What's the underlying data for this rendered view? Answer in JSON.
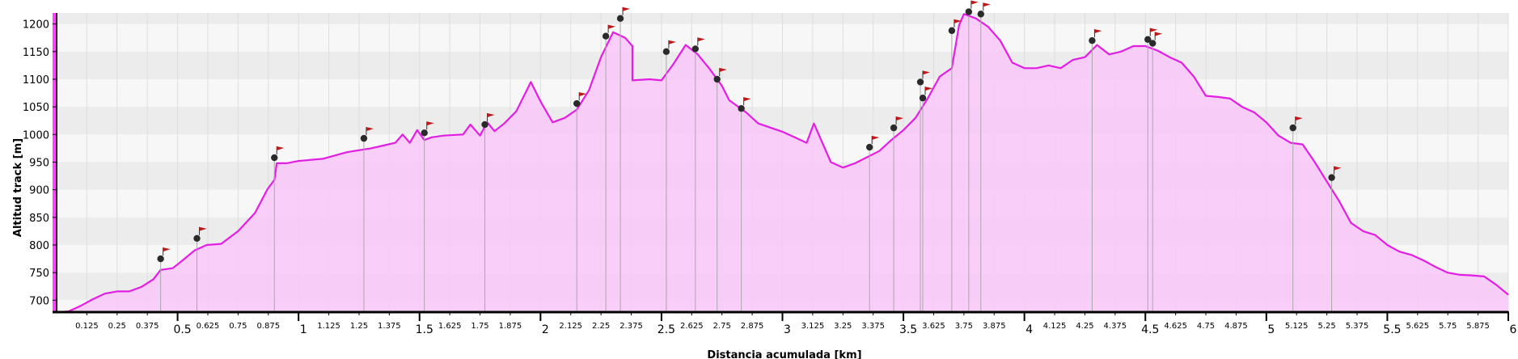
{
  "chart_data": {
    "type": "area",
    "xlabel": "Distancia acumulada [km]",
    "ylabel": "Altitud track [m]",
    "xlim": [
      0,
      6
    ],
    "ylim": [
      680,
      1220
    ],
    "x_major_ticks": [
      "0.5",
      "1",
      "1.5",
      "2",
      "2.5",
      "3",
      "3.5",
      "4",
      "4.5",
      "5",
      "5.5",
      "6"
    ],
    "x_minor_ticks": [
      "0.125",
      "0.25",
      "0.375",
      "0.625",
      "0.75",
      "0.875",
      "1.125",
      "1.25",
      "1.375",
      "1.625",
      "1.75",
      "1.875",
      "2.125",
      "2.25",
      "2.375",
      "2.625",
      "2.75",
      "2.875",
      "3.125",
      "3.25",
      "3.375",
      "3.625",
      "3.75",
      "3.875",
      "4.125",
      "4.25",
      "4.375",
      "4.625",
      "4.75",
      "4.875",
      "5.125",
      "5.25",
      "5.375",
      "5.625",
      "5.75",
      "5.875"
    ],
    "y_ticks": [
      "700",
      "750",
      "800",
      "850",
      "900",
      "950",
      "1000",
      "1050",
      "1100",
      "1150",
      "1200"
    ],
    "grid": true,
    "colors": {
      "line": "#e21ee2",
      "fill": "#f9c8f9",
      "band_dark": "#ececec",
      "band_light": "#f7f7f7",
      "axis_accent": "#ff44ff",
      "flag": "#c01818",
      "waypoint": "#2a2a2a"
    },
    "profile": [
      [
        0.0,
        678
      ],
      [
        0.05,
        680
      ],
      [
        0.1,
        690
      ],
      [
        0.15,
        702
      ],
      [
        0.2,
        712
      ],
      [
        0.25,
        716
      ],
      [
        0.3,
        716
      ],
      [
        0.35,
        724
      ],
      [
        0.4,
        738
      ],
      [
        0.43,
        755
      ],
      [
        0.48,
        758
      ],
      [
        0.52,
        772
      ],
      [
        0.57,
        790
      ],
      [
        0.62,
        800
      ],
      [
        0.68,
        802
      ],
      [
        0.75,
        825
      ],
      [
        0.82,
        858
      ],
      [
        0.87,
        900
      ],
      [
        0.9,
        918
      ],
      [
        0.91,
        948
      ],
      [
        0.95,
        948
      ],
      [
        1.0,
        952
      ],
      [
        1.1,
        956
      ],
      [
        1.2,
        968
      ],
      [
        1.3,
        975
      ],
      [
        1.35,
        980
      ],
      [
        1.4,
        985
      ],
      [
        1.43,
        1000
      ],
      [
        1.46,
        985
      ],
      [
        1.49,
        1008
      ],
      [
        1.52,
        990
      ],
      [
        1.55,
        995
      ],
      [
        1.6,
        998
      ],
      [
        1.68,
        1000
      ],
      [
        1.71,
        1018
      ],
      [
        1.75,
        998
      ],
      [
        1.78,
        1022
      ],
      [
        1.81,
        1006
      ],
      [
        1.85,
        1020
      ],
      [
        1.9,
        1042
      ],
      [
        1.96,
        1095
      ],
      [
        2.0,
        1060
      ],
      [
        2.05,
        1022
      ],
      [
        2.1,
        1030
      ],
      [
        2.15,
        1045
      ],
      [
        2.2,
        1080
      ],
      [
        2.25,
        1140
      ],
      [
        2.3,
        1185
      ],
      [
        2.35,
        1175
      ],
      [
        2.38,
        1160
      ],
      [
        2.38,
        1098
      ],
      [
        2.45,
        1100
      ],
      [
        2.5,
        1098
      ],
      [
        2.55,
        1128
      ],
      [
        2.6,
        1162
      ],
      [
        2.65,
        1145
      ],
      [
        2.7,
        1118
      ],
      [
        2.75,
        1088
      ],
      [
        2.78,
        1062
      ],
      [
        2.85,
        1040
      ],
      [
        2.9,
        1020
      ],
      [
        3.0,
        1005
      ],
      [
        3.05,
        995
      ],
      [
        3.1,
        985
      ],
      [
        3.13,
        1020
      ],
      [
        3.2,
        950
      ],
      [
        3.25,
        940
      ],
      [
        3.3,
        948
      ],
      [
        3.4,
        970
      ],
      [
        3.45,
        990
      ],
      [
        3.5,
        1008
      ],
      [
        3.55,
        1030
      ],
      [
        3.6,
        1065
      ],
      [
        3.65,
        1105
      ],
      [
        3.7,
        1120
      ],
      [
        3.73,
        1198
      ],
      [
        3.75,
        1218
      ],
      [
        3.8,
        1210
      ],
      [
        3.85,
        1195
      ],
      [
        3.9,
        1170
      ],
      [
        3.95,
        1130
      ],
      [
        4.0,
        1120
      ],
      [
        4.05,
        1120
      ],
      [
        4.1,
        1125
      ],
      [
        4.15,
        1120
      ],
      [
        4.2,
        1135
      ],
      [
        4.25,
        1140
      ],
      [
        4.3,
        1162
      ],
      [
        4.35,
        1145
      ],
      [
        4.4,
        1150
      ],
      [
        4.45,
        1160
      ],
      [
        4.5,
        1160
      ],
      [
        4.55,
        1152
      ],
      [
        4.6,
        1140
      ],
      [
        4.65,
        1130
      ],
      [
        4.7,
        1105
      ],
      [
        4.75,
        1070
      ],
      [
        4.8,
        1068
      ],
      [
        4.85,
        1065
      ],
      [
        4.9,
        1050
      ],
      [
        4.95,
        1040
      ],
      [
        5.0,
        1022
      ],
      [
        5.05,
        998
      ],
      [
        5.1,
        985
      ],
      [
        5.15,
        982
      ],
      [
        5.2,
        950
      ],
      [
        5.25,
        915
      ],
      [
        5.3,
        880
      ],
      [
        5.35,
        840
      ],
      [
        5.4,
        825
      ],
      [
        5.45,
        818
      ],
      [
        5.5,
        800
      ],
      [
        5.55,
        788
      ],
      [
        5.6,
        782
      ],
      [
        5.65,
        772
      ],
      [
        5.7,
        760
      ],
      [
        5.75,
        750
      ],
      [
        5.8,
        746
      ],
      [
        5.85,
        745
      ],
      [
        5.9,
        743
      ],
      [
        5.95,
        728
      ],
      [
        6.0,
        710
      ]
    ],
    "waypoints": [
      [
        0.43,
        775
      ],
      [
        0.58,
        812
      ],
      [
        0.9,
        958
      ],
      [
        1.27,
        993
      ],
      [
        1.52,
        1003
      ],
      [
        1.77,
        1018
      ],
      [
        2.15,
        1056
      ],
      [
        2.27,
        1178
      ],
      [
        2.33,
        1210
      ],
      [
        2.52,
        1150
      ],
      [
        2.64,
        1155
      ],
      [
        2.73,
        1100
      ],
      [
        2.83,
        1047
      ],
      [
        3.36,
        977
      ],
      [
        3.46,
        1012
      ],
      [
        3.57,
        1095
      ],
      [
        3.58,
        1066
      ],
      [
        3.7,
        1188
      ],
      [
        3.77,
        1222
      ],
      [
        3.82,
        1218
      ],
      [
        4.28,
        1170
      ],
      [
        4.51,
        1172
      ],
      [
        4.53,
        1165
      ],
      [
        5.11,
        1012
      ],
      [
        5.27,
        922
      ]
    ]
  }
}
